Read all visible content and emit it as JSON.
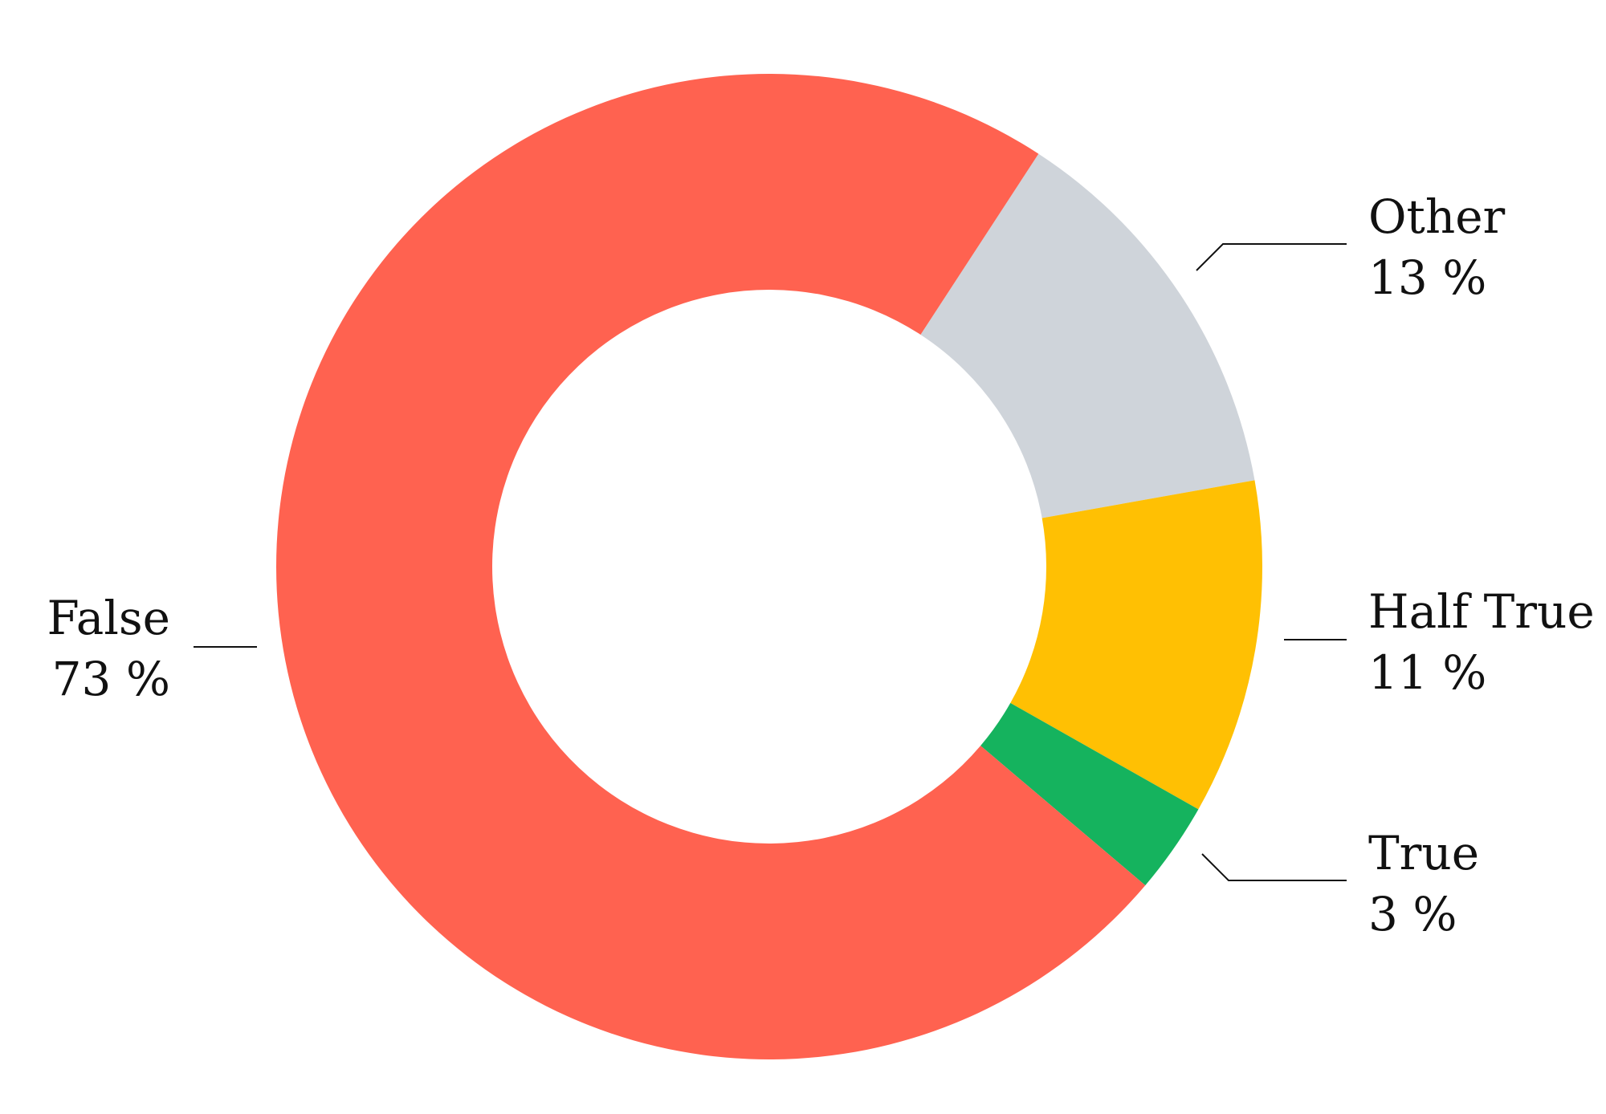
{
  "chart_data": {
    "type": "pie",
    "style": "donut",
    "title": "",
    "legend": "none",
    "slices": [
      {
        "name": "Other",
        "label": "Other",
        "value_label": "13 %",
        "value": 13,
        "color": "#CFD4DA"
      },
      {
        "name": "Half True",
        "label": "Half True",
        "value_label": "11 %",
        "value": 11,
        "color": "#FFC003"
      },
      {
        "name": "True",
        "label": "True",
        "value_label": "3 %",
        "value": 3,
        "color": "#15B35E"
      },
      {
        "name": "False",
        "label": "False",
        "value_label": "73 %",
        "value": 73,
        "color": "#FF6250"
      }
    ]
  }
}
